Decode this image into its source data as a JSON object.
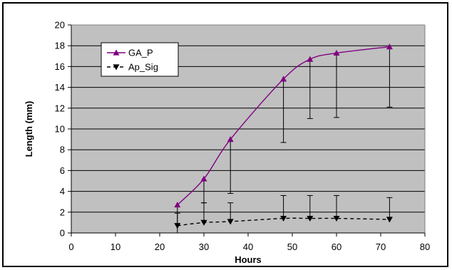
{
  "chart_data": {
    "type": "line",
    "title": "",
    "xlabel": "Hours",
    "ylabel": "Length (mm)",
    "xlim": [
      0,
      80
    ],
    "ylim": [
      0,
      20
    ],
    "x_ticks": [
      "0",
      "10",
      "20",
      "30",
      "40",
      "50",
      "60",
      "70",
      "80"
    ],
    "y_ticks": [
      "0",
      "2",
      "4",
      "6",
      "8",
      "10",
      "12",
      "14",
      "16",
      "18",
      "20"
    ],
    "grid": "horizontal",
    "legend_position": "top-left",
    "plot_background": "#c0c0c0",
    "series": [
      {
        "name": "GA_P",
        "color": "#800080",
        "marker": "triangle-up",
        "line_style": "solid",
        "x": [
          24,
          30,
          36,
          48,
          54,
          60,
          72
        ],
        "y": [
          2.7,
          5.2,
          9.0,
          14.8,
          16.7,
          17.3,
          17.9
        ],
        "error_lower": [
          2.7,
          2.3,
          5.2,
          6.1,
          5.7,
          6.2,
          5.8
        ]
      },
      {
        "name": "Ap_Sig",
        "color": "#000000",
        "marker": "triangle-down",
        "line_style": "dashed",
        "x": [
          24,
          30,
          36,
          48,
          54,
          60,
          72
        ],
        "y": [
          0.7,
          1.0,
          1.1,
          1.4,
          1.4,
          1.4,
          1.3
        ],
        "error_upper": [
          1.2,
          1.9,
          1.8,
          2.2,
          2.2,
          2.2,
          2.1
        ]
      }
    ]
  }
}
